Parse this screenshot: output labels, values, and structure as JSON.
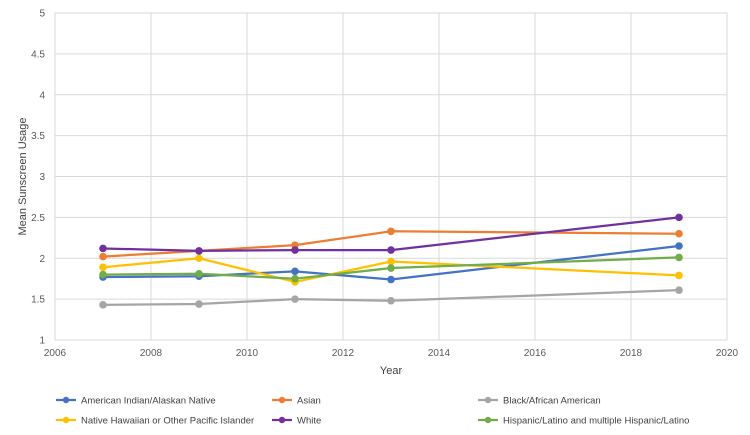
{
  "chart_data": {
    "type": "line",
    "title": "",
    "xlabel": "Year",
    "ylabel": "Mean Sunscreen Usage",
    "xlim": [
      2006,
      2020
    ],
    "ylim": [
      1,
      5
    ],
    "xticks": [
      2006,
      2008,
      2010,
      2012,
      2014,
      2016,
      2018,
      2020
    ],
    "yticks": [
      1,
      1.5,
      2,
      2.5,
      3,
      3.5,
      4,
      4.5,
      5
    ],
    "grid": true,
    "legend_position": "bottom",
    "series": [
      {
        "name": "American Indian/Alaskan Native",
        "color": "#4472C4",
        "x": [
          2007,
          2009,
          2011,
          2013,
          2019
        ],
        "y": [
          1.77,
          1.78,
          1.84,
          1.74,
          2.15
        ]
      },
      {
        "name": "Asian",
        "color": "#ED7D31",
        "x": [
          2007,
          2009,
          2011,
          2013,
          2019
        ],
        "y": [
          2.02,
          2.09,
          2.16,
          2.33,
          2.3
        ]
      },
      {
        "name": "Black/African American",
        "color": "#A5A5A5",
        "x": [
          2007,
          2009,
          2011,
          2013,
          2019
        ],
        "y": [
          1.43,
          1.44,
          1.5,
          1.48,
          1.61
        ]
      },
      {
        "name": "Native Hawaiian or Other Pacific Islander",
        "color": "#FFC000",
        "x": [
          2007,
          2009,
          2011,
          2013,
          2019
        ],
        "y": [
          1.89,
          2.0,
          1.71,
          1.96,
          1.79
        ]
      },
      {
        "name": "White",
        "color": "#7030A0",
        "x": [
          2007,
          2009,
          2011,
          2013,
          2019
        ],
        "y": [
          2.12,
          2.09,
          2.1,
          2.1,
          2.5
        ]
      },
      {
        "name": "Hispanic/Latino and multiple Hispanic/Latino",
        "color": "#70AD47",
        "x": [
          2007,
          2009,
          2011,
          2013,
          2019
        ],
        "y": [
          1.8,
          1.81,
          1.75,
          1.88,
          2.01
        ]
      }
    ]
  }
}
